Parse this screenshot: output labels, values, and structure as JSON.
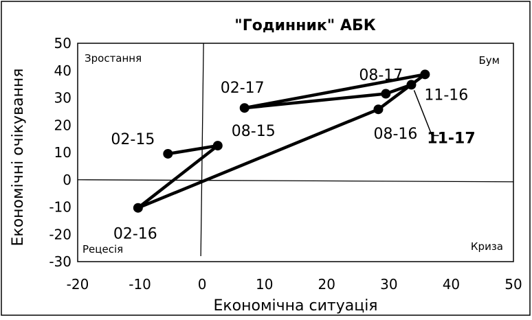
{
  "chart_data": {
    "type": "line",
    "title": "\"Годинник\" АБК",
    "xlabel": "Економічна ситуація",
    "ylabel": "Економічні очікування",
    "xlim": [
      -20,
      50
    ],
    "ylim": [
      -30,
      50
    ],
    "xticks": [
      -20,
      -10,
      0,
      10,
      20,
      30,
      40,
      50
    ],
    "yticks": [
      -30,
      -20,
      -10,
      0,
      10,
      20,
      30,
      40,
      50
    ],
    "x_tick_labels": [
      "-20",
      "-10",
      "0",
      "10",
      "20",
      "30",
      "40",
      "50"
    ],
    "y_tick_labels": [
      "-30",
      "-20",
      "-10",
      "0",
      "10",
      "20",
      "30",
      "40",
      "50"
    ],
    "grid": false,
    "quadrants": {
      "top_left": "Зростання",
      "top_right": "Бум",
      "bottom_left": "Рецесія",
      "bottom_right": "Криза"
    },
    "series": [
      {
        "x": [
          -5.5,
          2.5,
          -10.3,
          28.3,
          35.8,
          6.8,
          29.5,
          33.6
        ],
        "y": [
          9.5,
          12.5,
          -10.3,
          25.8,
          38.6,
          26.3,
          31.5,
          34.8
        ]
      }
    ],
    "point_labels": [
      "02-15",
      "08-15",
      "02-16",
      "08-16",
      "11-16",
      "02-17",
      "08-17",
      "11-17"
    ],
    "colors": {
      "line": "#000000",
      "marker": "#000000",
      "frame": "#000000"
    }
  }
}
